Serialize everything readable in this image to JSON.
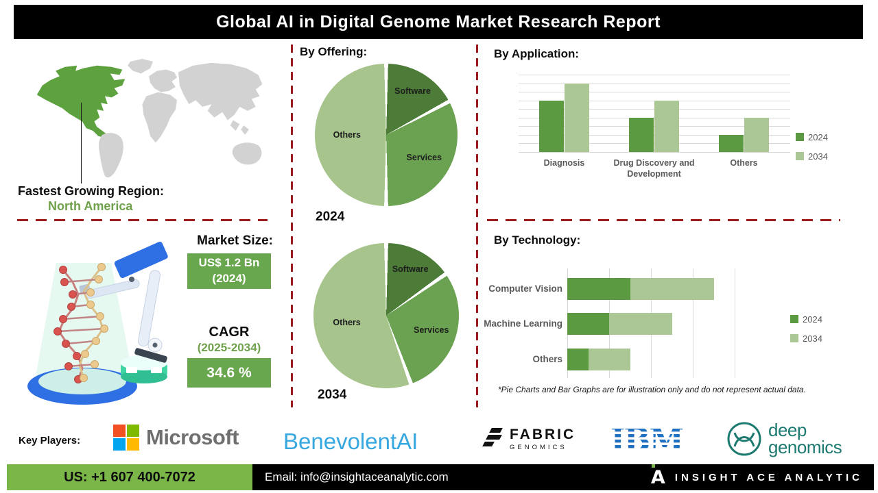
{
  "header": {
    "title": "Global AI in Digital Genome Market Research Report"
  },
  "region_section": {
    "label": "Fastest Growing Region:",
    "region": "North America"
  },
  "market_section": {
    "heading": "Market Size:",
    "size_line1": "US$ 1.2 Bn",
    "size_line2": "(2024)",
    "cagr_heading": "CAGR",
    "cagr_period": "(2025-2034)",
    "cagr_value": "34.6 %"
  },
  "offering_section": {
    "heading": "By Offering:"
  },
  "application_section": {
    "heading": "By Application:"
  },
  "technology_section": {
    "heading": "By Technology:"
  },
  "footnote": "*Pie Charts and Bar Graphs are for illustration only and do not represent actual data.",
  "key_players": {
    "label": "Key Players:",
    "microsoft": "Microsoft",
    "benevolent": "BenevolentAI",
    "fabric_line1": "FABRIC",
    "fabric_line2": "GENOMICS",
    "ibm": "IBM",
    "deep_line1": "deep",
    "deep_line2": "genomics"
  },
  "footer": {
    "phone": "US: +1 607 400-7072",
    "email": "Email: info@insightaceanalytic.com",
    "brand": "INSIGHT ACE ANALYTIC"
  },
  "colors": {
    "pie_dark_green": "#4d7b38",
    "pie_mid_green": "#6ba251",
    "pie_light_green": "#a7c48d",
    "bar_dark_green": "#5b9a41",
    "bar_light_green": "#abc795",
    "accent_red": "#9a1c1c",
    "box_green": "#69a74e",
    "footer_green": "#7ab648",
    "map_region_green": "#5da23f",
    "map_gray": "#d2d2d2"
  },
  "chart_data": [
    {
      "id": "offering_pie_2024",
      "type": "pie",
      "title": "2024",
      "labels": [
        "Software",
        "Services",
        "Others"
      ],
      "values": [
        17,
        33,
        50
      ],
      "angles": [
        [
          0,
          62
        ],
        [
          62,
          180
        ],
        [
          180,
          360
        ]
      ],
      "colors": [
        "#4d7b38",
        "#6ba251",
        "#a7c48d"
      ]
    },
    {
      "id": "offering_pie_2034",
      "type": "pie",
      "title": "2034",
      "labels": [
        "Software",
        "Services",
        "Others"
      ],
      "values": [
        15,
        29,
        56
      ],
      "angles": [
        [
          0,
          55
        ],
        [
          55,
          160
        ],
        [
          160,
          360
        ]
      ],
      "colors": [
        "#4d7b38",
        "#6ba251",
        "#a7c48d"
      ]
    },
    {
      "id": "application",
      "type": "bar",
      "title": "By Application:",
      "categories": [
        "Diagnosis",
        "Drug Discovery and Development",
        "Others"
      ],
      "series": [
        {
          "name": "2024",
          "color": "#5b9a41",
          "values": [
            6,
            4,
            2
          ]
        },
        {
          "name": "2034",
          "color": "#abc795",
          "values": [
            8,
            6,
            4
          ]
        }
      ],
      "ylim": [
        0,
        9
      ],
      "grid": true,
      "legend_position": "right"
    },
    {
      "id": "technology",
      "type": "bar",
      "orientation": "horizontal",
      "stacked": true,
      "title": "By Technology:",
      "categories": [
        "Computer Vision",
        "Machine Learning",
        "Others"
      ],
      "series": [
        {
          "name": "2024",
          "color": "#5b9a41",
          "values": [
            1.5,
            1.0,
            0.5
          ]
        },
        {
          "name": "2034",
          "color": "#abc795",
          "values": [
            2.0,
            1.5,
            1.0
          ]
        }
      ],
      "xlim": [
        0,
        4
      ],
      "grid": true,
      "legend_position": "right"
    }
  ]
}
